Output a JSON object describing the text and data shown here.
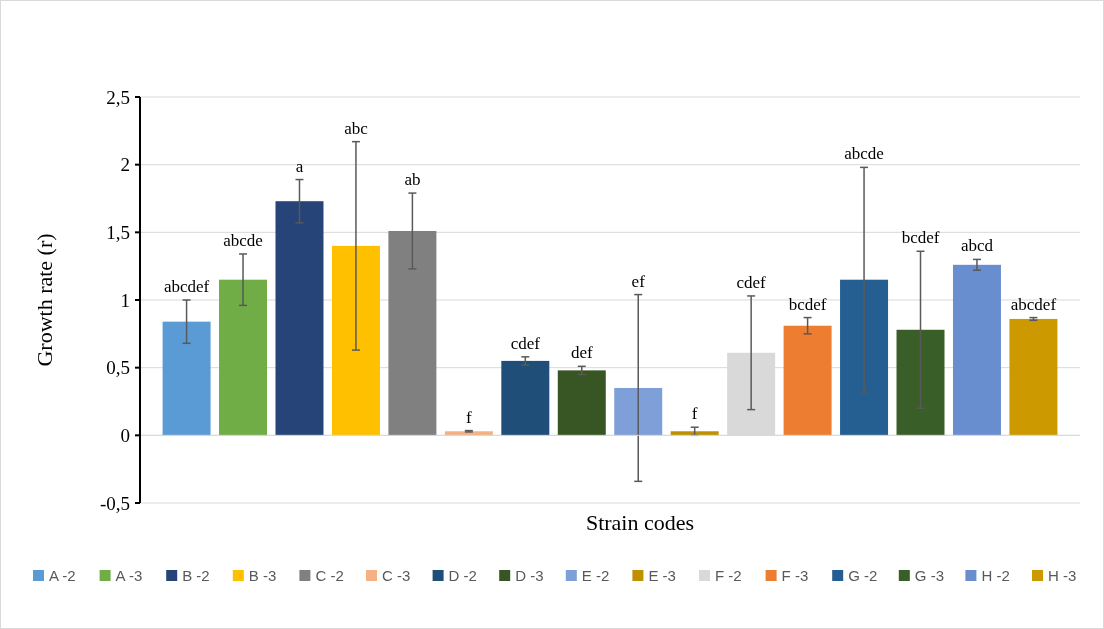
{
  "chart_data": {
    "type": "bar",
    "xlabel": "Strain codes",
    "ylabel": "Growth rate (r)",
    "categories": [
      null,
      null,
      null,
      null,
      null,
      null,
      null,
      null,
      null,
      null,
      null,
      null,
      null,
      null,
      null,
      null
    ],
    "series": [
      {
        "name": "A -2",
        "color": "#5b9bd5",
        "values": [
          0.84,
          null,
          null,
          null,
          null,
          null,
          null,
          null,
          null,
          null,
          null,
          null,
          null,
          null,
          null,
          null
        ],
        "errors": [
          0.16,
          null,
          null,
          null,
          null,
          null,
          null,
          null,
          null,
          null,
          null,
          null,
          null,
          null,
          null,
          null
        ]
      },
      {
        "name": "A -3",
        "color": "#70ad47",
        "values": [
          null,
          1.15,
          null,
          null,
          null,
          null,
          null,
          null,
          null,
          null,
          null,
          null,
          null,
          null,
          null,
          null
        ],
        "errors": [
          null,
          0.19,
          null,
          null,
          null,
          null,
          null,
          null,
          null,
          null,
          null,
          null,
          null,
          null,
          null,
          null
        ]
      },
      {
        "name": "B -2",
        "color": "#264478",
        "values": [
          null,
          null,
          1.73,
          null,
          null,
          null,
          null,
          null,
          null,
          null,
          null,
          null,
          null,
          null,
          null,
          null
        ],
        "errors": [
          null,
          null,
          0.16,
          null,
          null,
          null,
          null,
          null,
          null,
          null,
          null,
          null,
          null,
          null,
          null,
          null
        ]
      },
      {
        "name": "B -3",
        "color": "#ffc000",
        "values": [
          null,
          null,
          null,
          1.4,
          null,
          null,
          null,
          null,
          null,
          null,
          null,
          null,
          null,
          null,
          null,
          null
        ],
        "errors": [
          null,
          null,
          null,
          0.77,
          null,
          null,
          null,
          null,
          null,
          null,
          null,
          null,
          null,
          null,
          null,
          null
        ]
      },
      {
        "name": "C -2",
        "color": "#808080",
        "values": [
          null,
          null,
          null,
          null,
          1.51,
          null,
          null,
          null,
          null,
          null,
          null,
          null,
          null,
          null,
          null,
          null
        ],
        "errors": [
          null,
          null,
          null,
          null,
          0.28,
          null,
          null,
          null,
          null,
          null,
          null,
          null,
          null,
          null,
          null,
          null
        ]
      },
      {
        "name": "C -3",
        "color": "#f4b183",
        "values": [
          null,
          null,
          null,
          null,
          null,
          0.03,
          null,
          null,
          null,
          null,
          null,
          null,
          null,
          null,
          null,
          null
        ],
        "errors": [
          null,
          null,
          null,
          null,
          null,
          0.005,
          null,
          null,
          null,
          null,
          null,
          null,
          null,
          null,
          null,
          null
        ]
      },
      {
        "name": "D -2",
        "color": "#1f4e79",
        "values": [
          null,
          null,
          null,
          null,
          null,
          null,
          0.55,
          null,
          null,
          null,
          null,
          null,
          null,
          null,
          null,
          null
        ],
        "errors": [
          null,
          null,
          null,
          null,
          null,
          null,
          0.03,
          null,
          null,
          null,
          null,
          null,
          null,
          null,
          null,
          null
        ]
      },
      {
        "name": "D -3",
        "color": "#375623",
        "values": [
          null,
          null,
          null,
          null,
          null,
          null,
          null,
          0.48,
          null,
          null,
          null,
          null,
          null,
          null,
          null,
          null
        ],
        "errors": [
          null,
          null,
          null,
          null,
          null,
          null,
          null,
          0.03,
          null,
          null,
          null,
          null,
          null,
          null,
          null,
          null
        ]
      },
      {
        "name": "E -2",
        "color": "#7f9fd9",
        "values": [
          null,
          null,
          null,
          null,
          null,
          null,
          null,
          null,
          0.35,
          null,
          null,
          null,
          null,
          null,
          null,
          null
        ],
        "errors": [
          null,
          null,
          null,
          null,
          null,
          null,
          null,
          null,
          0.69,
          null,
          null,
          null,
          null,
          null,
          null,
          null
        ]
      },
      {
        "name": "E -3",
        "color": "#bf9000",
        "values": [
          null,
          null,
          null,
          null,
          null,
          null,
          null,
          null,
          null,
          0.03,
          null,
          null,
          null,
          null,
          null,
          null
        ],
        "errors": [
          null,
          null,
          null,
          null,
          null,
          null,
          null,
          null,
          null,
          0.03,
          null,
          null,
          null,
          null,
          null,
          null
        ]
      },
      {
        "name": "F -2",
        "color": "#d9d9d9",
        "values": [
          null,
          null,
          null,
          null,
          null,
          null,
          null,
          null,
          null,
          null,
          0.61,
          null,
          null,
          null,
          null,
          null
        ],
        "errors": [
          null,
          null,
          null,
          null,
          null,
          null,
          null,
          null,
          null,
          null,
          0.42,
          null,
          null,
          null,
          null,
          null
        ]
      },
      {
        "name": "F -3",
        "color": "#ed7d31",
        "values": [
          null,
          null,
          null,
          null,
          null,
          null,
          null,
          null,
          null,
          null,
          null,
          0.81,
          null,
          null,
          null,
          null
        ],
        "errors": [
          null,
          null,
          null,
          null,
          null,
          null,
          null,
          null,
          null,
          null,
          null,
          0.06,
          null,
          null,
          null,
          null
        ]
      },
      {
        "name": "G -2",
        "color": "#255e91",
        "values": [
          null,
          null,
          null,
          null,
          null,
          null,
          null,
          null,
          null,
          null,
          null,
          null,
          1.15,
          null,
          null,
          null
        ],
        "errors": [
          null,
          null,
          null,
          null,
          null,
          null,
          null,
          null,
          null,
          null,
          null,
          null,
          0.83,
          null,
          null,
          null
        ]
      },
      {
        "name": "G -3",
        "color": "#3a5e28",
        "values": [
          null,
          null,
          null,
          null,
          null,
          null,
          null,
          null,
          null,
          null,
          null,
          null,
          null,
          0.78,
          null,
          null
        ],
        "errors": [
          null,
          null,
          null,
          null,
          null,
          null,
          null,
          null,
          null,
          null,
          null,
          null,
          null,
          0.58,
          null,
          null
        ]
      },
      {
        "name": "H -2",
        "color": "#698ed0",
        "values": [
          null,
          null,
          null,
          null,
          null,
          null,
          null,
          null,
          null,
          null,
          null,
          null,
          null,
          null,
          1.26,
          null
        ],
        "errors": [
          null,
          null,
          null,
          null,
          null,
          null,
          null,
          null,
          null,
          null,
          null,
          null,
          null,
          null,
          0.04,
          null
        ]
      },
      {
        "name": "H -3",
        "color": "#cc9a00",
        "values": [
          null,
          null,
          null,
          null,
          null,
          null,
          null,
          null,
          null,
          null,
          null,
          null,
          null,
          null,
          null,
          0.86
        ],
        "errors": [
          null,
          null,
          null,
          null,
          null,
          null,
          null,
          null,
          null,
          null,
          null,
          null,
          null,
          null,
          null,
          0.01
        ]
      }
    ],
    "annotations": [
      "abcdef",
      "abcde",
      "a",
      "abc",
      "ab",
      "f",
      "cdef",
      "def",
      "ef",
      "f",
      "cdef",
      "bcdef",
      "abcde",
      "bcdef",
      "abcd",
      "abcdef"
    ],
    "ylim": [
      -0.5,
      2.5
    ],
    "yticks": [
      {
        "value": -0.5,
        "label": "-0,5"
      },
      0,
      {
        "value": 0.5,
        "label": "0,5"
      },
      1,
      {
        "value": 1.5,
        "label": "1,5"
      },
      2,
      {
        "value": 2.5,
        "label": "2,5"
      }
    ],
    "grid": "y",
    "legend": "bottom"
  }
}
